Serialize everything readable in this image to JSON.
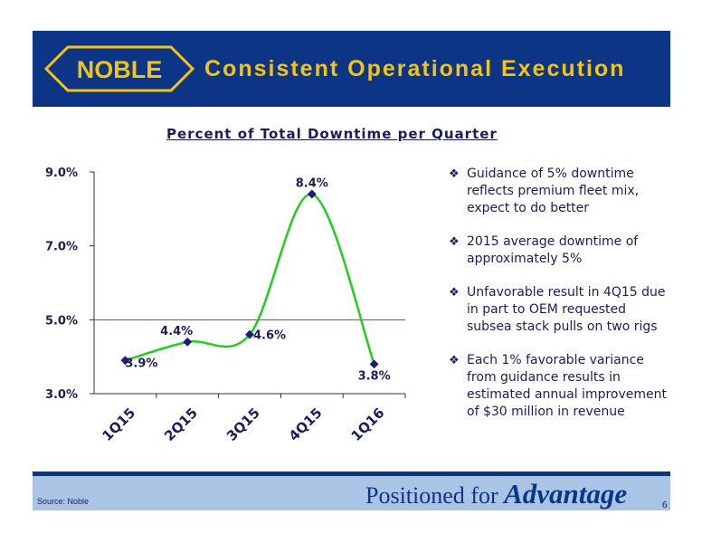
{
  "header": {
    "logo_text": "NOBLE",
    "title": "Consistent Operational Execution"
  },
  "chart_data": {
    "type": "line",
    "title": "Percent of Total Downtime per Quarter",
    "categories": [
      "1Q15",
      "2Q15",
      "3Q15",
      "4Q15",
      "1Q16"
    ],
    "values": [
      3.9,
      4.4,
      4.6,
      8.4,
      3.8
    ],
    "data_labels": [
      "3.9%",
      "4.4%",
      "4.6%",
      "8.4%",
      "3.8%"
    ],
    "yticks": [
      "3.0%",
      "5.0%",
      "7.0%",
      "9.0%"
    ],
    "ytick_values": [
      3.0,
      5.0,
      7.0,
      9.0
    ],
    "ylim": [
      3.0,
      9.0
    ],
    "reference_line": 5.0,
    "line_color": "#22cc22",
    "marker_color": "#1c1c7a",
    "reference_color": "#e02020",
    "grid": false,
    "smooth": true
  },
  "bullets": [
    "Guidance of 5% downtime reflects premium fleet mix, expect to do better",
    "2015 average downtime of approximately 5%",
    "Unfavorable result in 4Q15 due in part to OEM requested subsea stack pulls on two rigs",
    "Each 1% favorable variance from guidance results in estimated annual improvement of $30 million in revenue"
  ],
  "bullet_icon": "diamond-bullet-icon",
  "footer": {
    "source": "Source:  Noble",
    "tagline_prefix": "Positioned for ",
    "tagline_emphasis": "Advantage",
    "page_number": "6"
  },
  "colors": {
    "header_bg": "#0d3586",
    "title": "#f4c314",
    "footer_bg": "#a9c4e4"
  }
}
